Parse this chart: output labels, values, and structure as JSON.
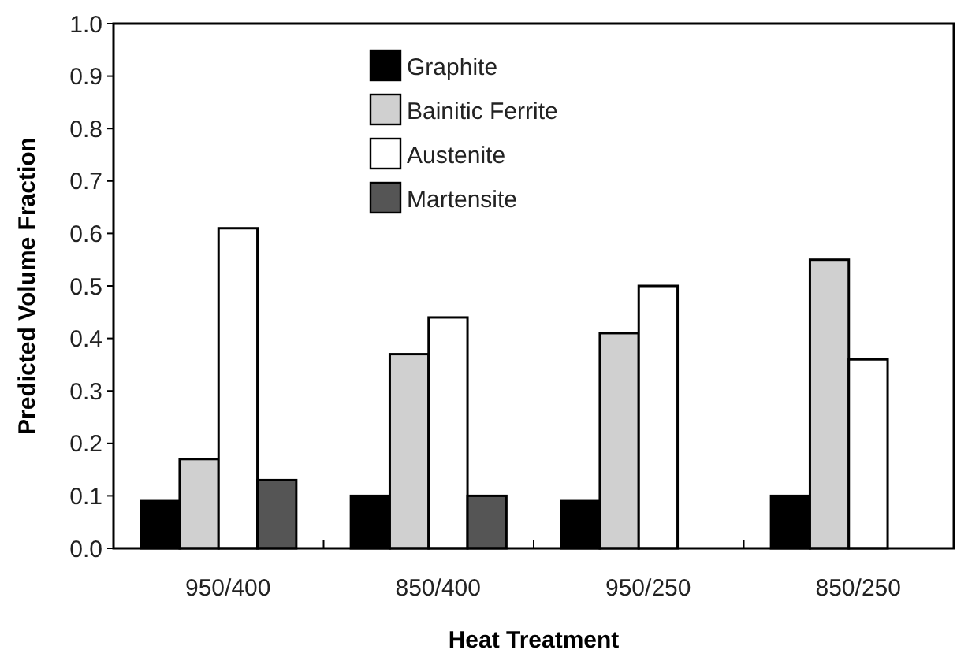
{
  "chart_data": {
    "type": "bar",
    "xlabel": "Heat Treatment",
    "ylabel": "Predicted Volume Fraction",
    "categories": [
      "950/400",
      "850/400",
      "950/250",
      "850/250"
    ],
    "series": [
      {
        "name": "Graphite",
        "color": "#000000",
        "values": [
          0.09,
          0.1,
          0.09,
          0.1
        ]
      },
      {
        "name": "Bainitic Ferrite",
        "color": "#d0d0d0",
        "values": [
          0.17,
          0.37,
          0.41,
          0.55
        ]
      },
      {
        "name": "Austenite",
        "color": "#ffffff",
        "values": [
          0.61,
          0.44,
          0.5,
          0.36
        ]
      },
      {
        "name": "Martensite",
        "color": "#555555",
        "values": [
          0.13,
          0.1,
          null,
          null
        ]
      }
    ],
    "ylim": [
      0,
      1
    ],
    "yticks": [
      {
        "value": 0,
        "label": "0.0"
      },
      0.1,
      0.2,
      0.3,
      0.4,
      0.5,
      0.6,
      0.7,
      0.8,
      0.9,
      {
        "value": 1,
        "label": "1.0"
      }
    ],
    "grid": false,
    "legend": "top"
  }
}
